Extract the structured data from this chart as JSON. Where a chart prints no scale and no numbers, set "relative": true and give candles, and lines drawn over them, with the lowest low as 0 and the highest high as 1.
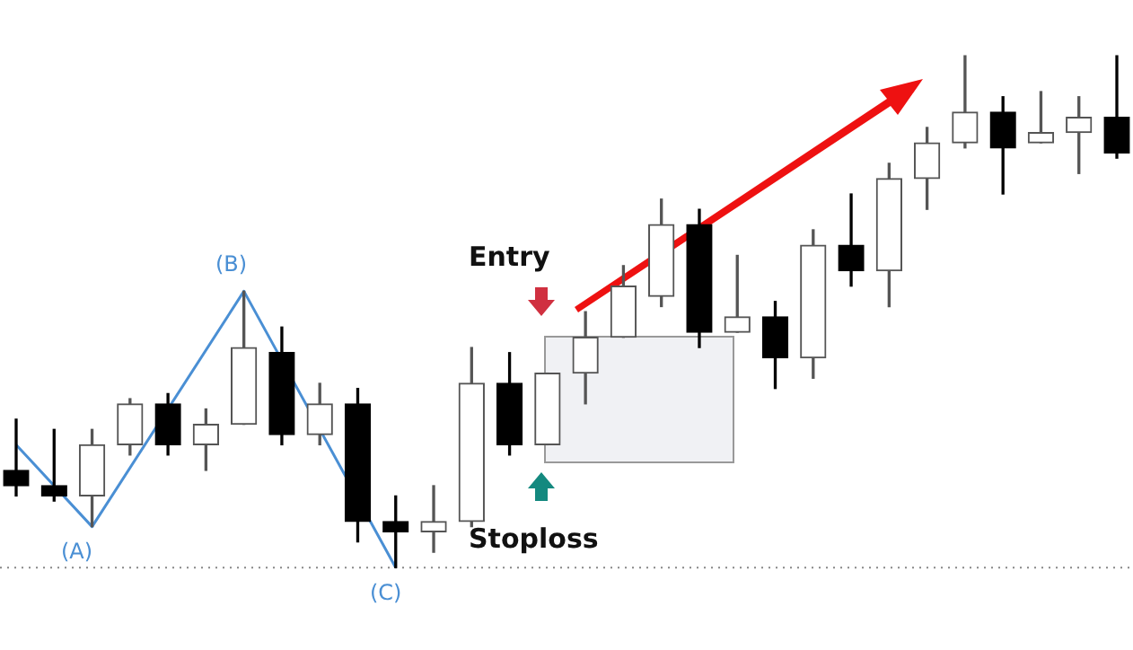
{
  "chart_data": {
    "type": "candlestick",
    "relative": true,
    "legend": false,
    "categories": [
      null,
      null,
      null,
      null,
      null,
      null,
      null,
      null,
      null,
      null,
      null,
      null,
      null,
      null,
      null,
      null,
      null,
      null,
      null,
      null,
      null,
      null,
      null,
      null,
      null,
      null,
      null,
      null,
      null,
      null
    ],
    "ohlc": [
      [
        0.19,
        0.29,
        0.14,
        0.16
      ],
      [
        0.16,
        0.27,
        0.13,
        0.14
      ],
      [
        0.14,
        0.27,
        0.08,
        0.24
      ],
      [
        0.24,
        0.33,
        0.22,
        0.32
      ],
      [
        0.32,
        0.34,
        0.22,
        0.24
      ],
      [
        0.24,
        0.31,
        0.19,
        0.28
      ],
      [
        0.28,
        0.54,
        0.28,
        0.43
      ],
      [
        0.42,
        0.47,
        0.24,
        0.26
      ],
      [
        0.26,
        0.36,
        0.24,
        0.32
      ],
      [
        0.32,
        0.35,
        0.05,
        0.09
      ],
      [
        0.09,
        0.14,
        0,
        0.07
      ],
      [
        0.07,
        0.16,
        0.03,
        0.09
      ],
      [
        0.09,
        0.43,
        0.08,
        0.36
      ],
      [
        0.36,
        0.42,
        0.22,
        0.24
      ],
      [
        0.24,
        0.38,
        0.24,
        0.38
      ],
      [
        0.38,
        0.5,
        0.32,
        0.45
      ],
      [
        0.45,
        0.59,
        0.45,
        0.55
      ],
      [
        0.53,
        0.72,
        0.51,
        0.67
      ],
      [
        0.67,
        0.7,
        0.43,
        0.46
      ],
      [
        0.46,
        0.61,
        0.46,
        0.49
      ],
      [
        0.49,
        0.52,
        0.35,
        0.41
      ],
      [
        0.41,
        0.66,
        0.37,
        0.63
      ],
      [
        0.63,
        0.73,
        0.55,
        0.58
      ],
      [
        0.58,
        0.79,
        0.51,
        0.76
      ],
      [
        0.76,
        0.86,
        0.7,
        0.83
      ],
      [
        0.83,
        1,
        0.82,
        0.89
      ],
      [
        0.89,
        0.92,
        0.73,
        0.82
      ],
      [
        0.83,
        0.93,
        0.83,
        0.85
      ],
      [
        0.85,
        0.92,
        0.77,
        0.88
      ],
      [
        0.88,
        1,
        0.8,
        0.81
      ]
    ],
    "series": [
      {
        "type": "line",
        "color": "#4a8fd4",
        "values": [
          0.24,
          null,
          0.08,
          null,
          null,
          null,
          0.54,
          null,
          null,
          null,
          0,
          null,
          null,
          null,
          null,
          null,
          null,
          null,
          null,
          null,
          null,
          null,
          null,
          null,
          null,
          null,
          null,
          null,
          null,
          null
        ]
      }
    ],
    "ref_lines": [
      {
        "axis": "y",
        "value": 0,
        "color": "#888888",
        "line_style": "dotted"
      }
    ],
    "annotations": [
      "(A)",
      "(B)",
      "(C)",
      "Entry",
      "Stoploss"
    ]
  }
}
